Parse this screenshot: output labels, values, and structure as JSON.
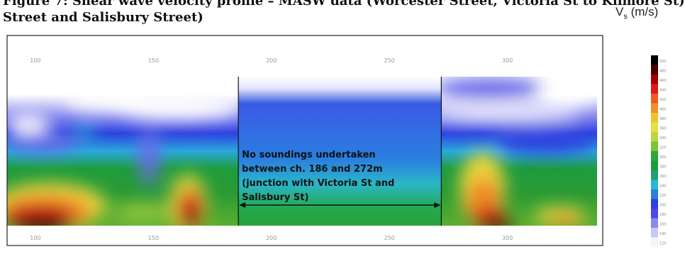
{
  "caption": {
    "line1": "Figure 7: Shear wave velocity profile – MASW data (Worcester Street, Victoria St to Kilmore St)",
    "line2": "Street and Salisbury Street)"
  },
  "legend_title": {
    "base": "V",
    "sub": "s",
    "unit": "(m/s)"
  },
  "annotation": [
    "No soundings undertaken",
    "between ch. 186 and 272m",
    "(junction with Victoria St and",
    "Salisbury St)"
  ],
  "chart_data": {
    "type": "heatmap",
    "x_ticks": [
      "100",
      "150",
      "200",
      "250",
      "300"
    ],
    "x_tick_values": [
      100,
      150,
      200,
      250,
      300
    ],
    "xlim": [
      88,
      338
    ],
    "gap_start": 186,
    "gap_end": 272,
    "colorbar": {
      "min": 120,
      "max": 500,
      "ticks": [
        "500",
        "480",
        "460",
        "440",
        "420",
        "400",
        "380",
        "360",
        "340",
        "320",
        "300",
        "280",
        "260",
        "240",
        "220",
        "200",
        "180",
        "160",
        "140",
        "120"
      ]
    },
    "colors": [
      "#ffffff",
      "#6a6ae8",
      "#2d41e0",
      "#28b8d8",
      "#1e9c3c",
      "#9ac83c",
      "#ecd840",
      "#f08828",
      "#d01818",
      "#000000"
    ]
  }
}
